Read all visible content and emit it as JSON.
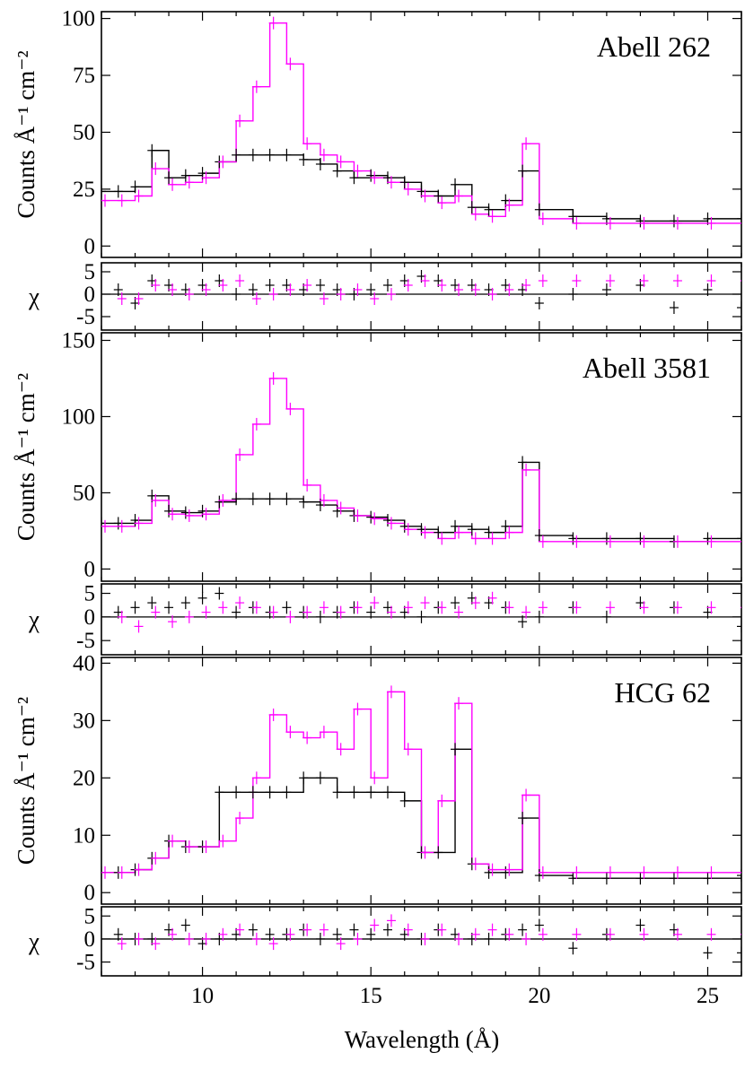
{
  "colors": {
    "black_series": "#000000",
    "magenta_series": "#ff00ff"
  },
  "x_axis": {
    "label": "Wavelength (Å)",
    "range": [
      7,
      26
    ],
    "ticks": [
      10,
      15,
      20,
      25
    ],
    "minor_step": 1
  },
  "ylabel_counts": "Counts Å⁻¹ cm⁻²",
  "ylabel_chi": "χ",
  "chart_data": [
    {
      "type": "line",
      "title": "Abell 262",
      "plot": "spectrum",
      "ylim": [
        -5,
        103
      ],
      "yticks": [
        0,
        25,
        50,
        75,
        100
      ],
      "x": [
        7,
        7.5,
        8,
        8.5,
        9,
        9.5,
        10,
        10.5,
        11,
        11.5,
        12,
        12.5,
        13,
        13.5,
        14,
        14.5,
        15,
        15.5,
        16,
        16.5,
        17,
        17.5,
        18,
        18.5,
        19,
        19.5,
        20,
        21,
        22,
        23,
        24,
        25,
        26
      ],
      "series": [
        {
          "values": [
            24,
            24,
            26,
            42,
            30,
            31,
            32,
            37,
            40,
            40,
            40,
            40,
            38,
            36,
            33,
            30,
            31,
            30,
            28,
            24,
            22,
            27,
            17,
            16,
            20,
            33,
            16,
            13,
            12,
            11,
            11,
            12,
            12
          ]
        },
        {
          "values": [
            20,
            20,
            22,
            34,
            27,
            28,
            30,
            37,
            55,
            70,
            98,
            80,
            45,
            40,
            37,
            33,
            30,
            28,
            25,
            22,
            19,
            22,
            14,
            13,
            18,
            45,
            12,
            10,
            10,
            10,
            10,
            10,
            10
          ]
        }
      ]
    },
    {
      "type": "scatter",
      "title": "",
      "plot": "residuals",
      "ylim": [
        -8,
        7
      ],
      "yticks": [
        -5,
        0,
        5
      ],
      "x": [
        7.5,
        8,
        8.5,
        9,
        9.5,
        10,
        10.5,
        11,
        11.5,
        12,
        12.5,
        13,
        13.5,
        14,
        14.5,
        15,
        15.5,
        16,
        16.5,
        17,
        17.5,
        18,
        18.5,
        19,
        19.5,
        20,
        21,
        22,
        23,
        24,
        25,
        26
      ],
      "series": [
        {
          "values": [
            1,
            -2,
            3,
            2,
            1,
            2,
            3,
            0,
            1,
            2,
            2,
            1,
            2,
            1,
            0,
            1,
            2,
            3,
            4,
            3,
            2,
            2,
            1,
            2,
            1,
            -2,
            0,
            1,
            2,
            -3,
            1,
            -3
          ]
        },
        {
          "values": [
            -1,
            -1,
            2,
            1,
            0,
            1,
            2,
            3,
            -1,
            0,
            1,
            2,
            -1,
            0,
            1,
            -1,
            0,
            2,
            3,
            2,
            1,
            1,
            0,
            1,
            2,
            3,
            3,
            3,
            3,
            3,
            3,
            3
          ]
        }
      ]
    },
    {
      "type": "line",
      "title": "Abell 3581",
      "plot": "spectrum",
      "ylim": [
        -8,
        155
      ],
      "yticks": [
        0,
        50,
        100,
        150
      ],
      "x": [
        7,
        7.5,
        8,
        8.5,
        9,
        9.5,
        10,
        10.5,
        11,
        11.5,
        12,
        12.5,
        13,
        13.5,
        14,
        14.5,
        15,
        15.5,
        16,
        16.5,
        17,
        17.5,
        18,
        18.5,
        19,
        19.5,
        20,
        21,
        22,
        23,
        24,
        25,
        26
      ],
      "series": [
        {
          "values": [
            30,
            30,
            32,
            48,
            38,
            37,
            38,
            44,
            46,
            46,
            46,
            46,
            44,
            42,
            38,
            35,
            34,
            32,
            28,
            26,
            24,
            28,
            26,
            24,
            28,
            70,
            22,
            20,
            20,
            20,
            18,
            20,
            20
          ]
        },
        {
          "values": [
            28,
            28,
            30,
            45,
            36,
            35,
            36,
            45,
            75,
            95,
            125,
            105,
            55,
            45,
            40,
            35,
            33,
            30,
            26,
            24,
            20,
            24,
            20,
            20,
            24,
            65,
            18,
            18,
            18,
            18,
            18,
            18,
            18
          ]
        }
      ]
    },
    {
      "type": "scatter",
      "title": "",
      "plot": "residuals",
      "ylim": [
        -8,
        7
      ],
      "yticks": [
        -5,
        0,
        5
      ],
      "x": [
        7.5,
        8,
        8.5,
        9,
        9.5,
        10,
        10.5,
        11,
        11.5,
        12,
        12.5,
        13,
        13.5,
        14,
        14.5,
        15,
        15.5,
        16,
        16.5,
        17,
        17.5,
        18,
        18.5,
        19,
        19.5,
        20,
        21,
        22,
        23,
        24,
        25,
        26
      ],
      "series": [
        {
          "values": [
            1,
            2,
            3,
            2,
            3,
            4,
            5,
            1,
            2,
            1,
            2,
            1,
            0,
            1,
            2,
            1,
            2,
            1,
            0,
            2,
            3,
            4,
            3,
            2,
            -1,
            0,
            2,
            0,
            3,
            2,
            1,
            -2
          ]
        },
        {
          "values": [
            0,
            -2,
            1,
            -1,
            0,
            1,
            2,
            3,
            2,
            1,
            0,
            1,
            2,
            1,
            2,
            3,
            1,
            2,
            3,
            2,
            1,
            3,
            4,
            2,
            1,
            2,
            2,
            2,
            2,
            2,
            2,
            2
          ]
        }
      ]
    },
    {
      "type": "line",
      "title": "HCG 62",
      "plot": "spectrum",
      "ylim": [
        -2,
        41
      ],
      "yticks": [
        0,
        10,
        20,
        30,
        40
      ],
      "x": [
        7,
        7.5,
        8,
        8.5,
        9,
        9.5,
        10,
        10.5,
        11,
        11.5,
        12,
        12.5,
        13,
        13.5,
        14,
        14.5,
        15,
        15.5,
        16,
        16.5,
        17,
        17.5,
        18,
        18.5,
        19,
        19.5,
        20,
        21,
        22,
        23,
        24,
        25,
        26
      ],
      "series": [
        {
          "values": [
            3.5,
            3.5,
            4,
            6,
            9,
            8,
            8,
            17.5,
            17.5,
            17.5,
            17.5,
            17.5,
            20,
            20,
            17.5,
            17.5,
            17.5,
            17.5,
            16,
            7,
            7,
            25,
            5,
            3.5,
            3.5,
            13,
            3,
            2.5,
            2.5,
            2.5,
            2.5,
            2.5,
            3
          ]
        },
        {
          "values": [
            3.5,
            3.5,
            4,
            6,
            9,
            8,
            8,
            9,
            13,
            20,
            31,
            28,
            27,
            28,
            25,
            32,
            20,
            35,
            25,
            7,
            16,
            33,
            5,
            4,
            4,
            17,
            3.5,
            3.5,
            3.5,
            3.5,
            3.5,
            3.5,
            3.5
          ]
        }
      ]
    },
    {
      "type": "scatter",
      "title": "",
      "plot": "residuals",
      "ylim": [
        -8,
        7
      ],
      "yticks": [
        -5,
        0,
        5
      ],
      "x": [
        7.5,
        8,
        8.5,
        9,
        9.5,
        10,
        10.5,
        11,
        11.5,
        12,
        12.5,
        13,
        13.5,
        14,
        14.5,
        15,
        15.5,
        16,
        16.5,
        17,
        17.5,
        18,
        18.5,
        19,
        19.5,
        20,
        21,
        22,
        23,
        24,
        25,
        26
      ],
      "series": [
        {
          "values": [
            1,
            0,
            0,
            2,
            3,
            -1,
            0,
            1,
            2,
            1,
            1,
            2,
            0,
            1,
            2,
            1,
            2,
            1,
            0,
            2,
            1,
            0,
            0,
            1,
            2,
            3,
            -2,
            1,
            3,
            2,
            -3,
            -3
          ]
        },
        {
          "values": [
            -1,
            0,
            -1,
            1,
            0,
            0,
            1,
            2,
            0,
            -1,
            1,
            2,
            2,
            -1,
            0,
            3,
            4,
            2,
            0,
            2,
            0,
            1,
            2,
            1,
            0,
            1,
            1,
            1,
            1,
            1,
            1,
            1
          ]
        }
      ]
    }
  ]
}
